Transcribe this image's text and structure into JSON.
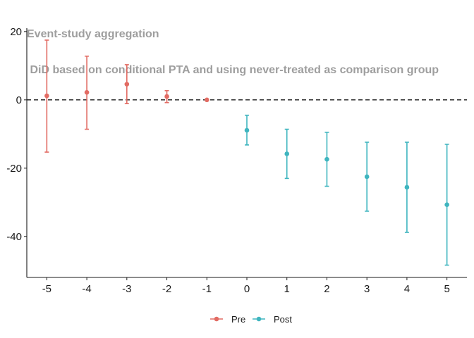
{
  "chart_data": {
    "type": "scatter",
    "title": "Event-study aggregation",
    "subtitle": " DiD based on conditional PTA and using never-treated as comparison group",
    "xlabel": "",
    "ylabel": "",
    "x_ticks": [
      "-5",
      "-4",
      "-3",
      "-2",
      "-1",
      "0",
      "1",
      "2",
      "3",
      "4",
      "5"
    ],
    "y_ticks": [
      "20",
      "0",
      "-20",
      "-40"
    ],
    "xlim": [
      -5.5,
      5.5
    ],
    "ylim": [
      -52,
      21
    ],
    "reference_line": {
      "y": 0,
      "style": "dashed"
    },
    "grid": false,
    "legend_position": "bottom",
    "series": [
      {
        "name": "Pre",
        "color": "#e26b63",
        "points": [
          {
            "x": -5,
            "y": 1.2,
            "lower": -15.3,
            "upper": 17.5
          },
          {
            "x": -4,
            "y": 2.2,
            "lower": -8.6,
            "upper": 12.8
          },
          {
            "x": -3,
            "y": 4.6,
            "lower": -1.1,
            "upper": 10.3
          },
          {
            "x": -2,
            "y": 1.0,
            "lower": -0.8,
            "upper": 2.7
          },
          {
            "x": -1,
            "y": 0.0,
            "lower": 0.0,
            "upper": 0.0
          }
        ]
      },
      {
        "name": "Post",
        "color": "#3fb5bf",
        "points": [
          {
            "x": 0,
            "y": -8.9,
            "lower": -13.2,
            "upper": -4.5
          },
          {
            "x": 1,
            "y": -15.8,
            "lower": -23.0,
            "upper": -8.6
          },
          {
            "x": 2,
            "y": -17.4,
            "lower": -25.3,
            "upper": -9.5
          },
          {
            "x": 3,
            "y": -22.5,
            "lower": -32.6,
            "upper": -12.4
          },
          {
            "x": 4,
            "y": -25.6,
            "lower": -38.8,
            "upper": -12.4
          },
          {
            "x": 5,
            "y": -30.7,
            "lower": -48.4,
            "upper": -13.0
          }
        ]
      }
    ]
  }
}
